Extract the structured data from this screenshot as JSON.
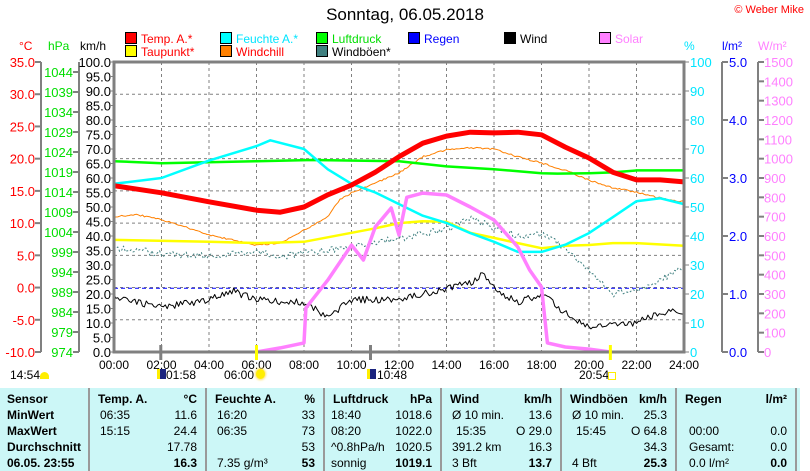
{
  "header": {
    "title": "Sonntag, 06.05.2018",
    "copyright": "© Weber Mike"
  },
  "legend": [
    {
      "label": "Temp. A.*",
      "color": "#ff0000",
      "text_color": "#ff0000"
    },
    {
      "label": "Feuchte A.*",
      "color": "#00ffff",
      "text_color": "#00e5ff"
    },
    {
      "label": "Luftdruck",
      "color": "#00ff00",
      "text_color": "#00dd00"
    },
    {
      "label": "Regen",
      "color": "#0000ff",
      "text_color": "#0000ff"
    },
    {
      "label": "Wind",
      "color": "#000000",
      "text_color": "#000000"
    },
    {
      "label": "Solar",
      "color": "#ff80ff",
      "text_color": "#ff80ff"
    },
    {
      "label": "Taupunkt*",
      "color": "#ffff00",
      "text_color": "#ff0000"
    },
    {
      "label": "Windchill",
      "color": "#ff8000",
      "text_color": "#ff0000"
    },
    {
      "label": "Windböen*",
      "color": "#408080",
      "text_color": "#000000"
    }
  ],
  "chart_data": {
    "type": "line",
    "title": "Sonntag, 06.05.2018",
    "xlabel": "",
    "x_range": [
      0,
      24
    ],
    "x_ticks": [
      "00:00",
      "02:00",
      "04:00",
      "06:00",
      "08:00",
      "10:00",
      "12:00",
      "14:00",
      "16:00",
      "18:00",
      "20:00",
      "22:00",
      "24:00"
    ],
    "grid": true,
    "axes": {
      "temp": {
        "unit": "°C",
        "range": [
          -10,
          35
        ],
        "color": "#ff0000",
        "ticks": [
          "35.0",
          "30.0",
          "25.0",
          "20.0",
          "15.0",
          "10.0",
          "5.0",
          "0.0",
          "-5.0",
          "-10.0"
        ]
      },
      "hpa": {
        "unit": "hPa",
        "range": [
          974,
          1046.5
        ],
        "color": "#00dd00",
        "ticks": [
          "1044",
          "1039",
          "1034",
          "1029",
          "1024",
          "1019",
          "1014",
          "1009",
          "1004",
          "999",
          "994",
          "989",
          "984",
          "979",
          "974"
        ]
      },
      "kmh": {
        "unit": "km/h",
        "range": [
          0,
          100
        ],
        "color": "#000000",
        "ticks": [
          "100.0",
          "95.0",
          "90.0",
          "85.0",
          "80.0",
          "75.0",
          "70.0",
          "65.0",
          "60.0",
          "55.0",
          "50.0",
          "45.0",
          "40.0",
          "35.0",
          "30.0",
          "25.0",
          "20.0",
          "15.0",
          "10.0",
          "5.0",
          "0.0"
        ]
      },
      "hum": {
        "unit": "%",
        "range": [
          0,
          100
        ],
        "color": "#00e5ff",
        "ticks": [
          "100",
          "90",
          "80",
          "70",
          "60",
          "50",
          "40",
          "30",
          "20",
          "10",
          "0"
        ]
      },
      "rain": {
        "unit": "l/m²",
        "range": [
          0,
          5
        ],
        "color": "#0000ff",
        "ticks": [
          "5.0",
          "4.0",
          "3.0",
          "2.0",
          "1.0",
          "0.0"
        ]
      },
      "solar": {
        "unit": "W/m²",
        "range": [
          0,
          1500
        ],
        "color": "#ff80ff",
        "ticks": [
          "1500",
          "1400",
          "1300",
          "1200",
          "1100",
          "1000",
          "900",
          "800",
          "700",
          "600",
          "500",
          "400",
          "300",
          "200",
          "100",
          "0"
        ]
      }
    },
    "reference_line_kmh": 22,
    "series": [
      {
        "name": "Windböen",
        "axis": "kmh",
        "color": "#408080",
        "noisy": true,
        "x": [
          0,
          2,
          4,
          6,
          7,
          8,
          10,
          11,
          12,
          13,
          14,
          15,
          16,
          17,
          18,
          19,
          20,
          21,
          22,
          23,
          24
        ],
        "y": [
          36,
          34,
          33,
          35,
          33,
          34,
          36,
          38,
          39,
          41,
          42,
          46.5,
          43,
          40,
          41,
          36,
          28,
          20,
          21,
          25,
          29
        ]
      },
      {
        "name": "Wind",
        "axis": "kmh",
        "color": "#000000",
        "noisy": true,
        "x": [
          0,
          2,
          4,
          5,
          6,
          8,
          9,
          10,
          12,
          13,
          14,
          15,
          15.6,
          16,
          17,
          18,
          19,
          20,
          21,
          22,
          23,
          24
        ],
        "y": [
          19,
          15.5,
          18,
          21,
          18,
          17,
          12,
          18,
          18,
          20,
          22,
          24,
          27,
          22,
          17,
          20,
          13.5,
          8.6,
          9.3,
          10,
          13.5,
          14
        ]
      },
      {
        "name": "Regen",
        "axis": "rain",
        "color": "#0000ff",
        "x": [
          0,
          24
        ],
        "y": [
          0,
          0
        ]
      },
      {
        "name": "Windchill",
        "axis": "temp",
        "color": "#ff8000",
        "noisy": true,
        "x": [
          0,
          1,
          2,
          3,
          4,
          5,
          6,
          7,
          8,
          9,
          9.5,
          10,
          11,
          12,
          13,
          14,
          15,
          16,
          17,
          18,
          19,
          20,
          21,
          22,
          23,
          24
        ],
        "y": [
          11.0,
          11.3,
          10.5,
          9.4,
          8.2,
          7.4,
          6.6,
          6.9,
          8.9,
          11.0,
          13.6,
          14.7,
          16.2,
          17.8,
          20.3,
          21.4,
          21.7,
          21.5,
          20.3,
          19.3,
          18.2,
          16.7,
          15.5,
          14.8,
          13.9,
          13.3
        ]
      },
      {
        "name": "Taupunkt",
        "axis": "temp",
        "color": "#ffff00",
        "x": [
          0,
          4,
          6,
          8,
          10,
          11,
          12,
          13,
          14,
          15,
          16,
          17,
          18,
          19,
          20,
          21,
          22,
          24
        ],
        "y": [
          7.4,
          7.1,
          6.9,
          7.1,
          8.5,
          9.2,
          10.0,
          10.3,
          10.2,
          8.5,
          7.7,
          6.9,
          6.1,
          6.5,
          6.6,
          6.9,
          6.9,
          6.5
        ]
      },
      {
        "name": "Luftdruck",
        "axis": "hpa",
        "color": "#00ff00",
        "x": [
          0,
          2,
          6,
          8.33,
          12,
          14,
          16,
          18,
          18.67,
          20,
          21,
          22,
          24
        ],
        "y": [
          1021.7,
          1021.2,
          1021.7,
          1022.0,
          1021.7,
          1020.4,
          1019.7,
          1018.7,
          1018.6,
          1018.7,
          1018.9,
          1019.4,
          1019.4
        ]
      },
      {
        "name": "Feuchte A.",
        "axis": "hum",
        "color": "#00ffff",
        "x": [
          0,
          2,
          4,
          6,
          6.58,
          8,
          9,
          10,
          11,
          12,
          13,
          14,
          15,
          16,
          17,
          18,
          19,
          20,
          21,
          22,
          23,
          24
        ],
        "y": [
          58,
          60,
          66,
          71,
          73,
          70,
          63,
          58,
          55,
          51,
          47,
          44.5,
          41,
          38,
          34.5,
          34.5,
          37,
          41,
          46.5,
          52,
          53,
          51
        ]
      },
      {
        "name": "Solar",
        "axis": "solar",
        "color": "#ff80ff",
        "x": [
          6,
          7,
          8,
          8.08,
          9,
          10,
          10.5,
          11,
          11.67,
          12,
          12.33,
          13,
          14,
          15,
          16,
          17,
          17.5,
          18,
          18.25,
          19,
          20,
          20.9
        ],
        "y": [
          0,
          21,
          47,
          228,
          372,
          553,
          476,
          647,
          745,
          605,
          800,
          822,
          812,
          750,
          683,
          543,
          424,
          336,
          47,
          26,
          15,
          0
        ]
      },
      {
        "name": "Temp. A.",
        "axis": "temp",
        "color": "#ff0000",
        "x": [
          0,
          2,
          4,
          6,
          7,
          8,
          9,
          10,
          11,
          12,
          13,
          14,
          15,
          16,
          17,
          18,
          19,
          20,
          21,
          22,
          23,
          24
        ],
        "y": [
          15.8,
          14.7,
          13.3,
          12.0,
          11.7,
          12.5,
          14.4,
          15.9,
          17.9,
          20.3,
          22.4,
          23.5,
          24.1,
          24.0,
          24.1,
          23.7,
          21.8,
          20.1,
          17.9,
          16.7,
          16.7,
          16.4
        ]
      }
    ]
  },
  "astro": [
    {
      "label": "14:54",
      "icon": "moon-phase-icon"
    },
    {
      "label": "01:58",
      "icon": "moonrise-icon",
      "hour": 1.97
    },
    {
      "label": "06:00",
      "icon": "sunrise-icon",
      "hour": 6.0
    },
    {
      "label": "10:48",
      "icon": "moonset-icon",
      "hour": 10.8
    },
    {
      "label": "20:54",
      "icon": "sunset-icon",
      "hour": 20.9
    }
  ],
  "table": {
    "sensor_header": "Sensor",
    "row_labels": [
      "MinWert",
      "MaxWert",
      "Durchschnitt",
      "06.05. 23:55"
    ],
    "columns": [
      {
        "name": "Temp. A.",
        "unit": "°C",
        "rows": [
          [
            "06:35",
            "11.6"
          ],
          [
            "15:15",
            "24.4"
          ],
          [
            "",
            "17.78"
          ],
          [
            "",
            "16.3"
          ]
        ]
      },
      {
        "name": "Feuchte A.",
        "unit": "%",
        "rows": [
          [
            "16:20",
            "33"
          ],
          [
            "06:35",
            "73"
          ],
          [
            "",
            "53"
          ],
          [
            "7.35 g/m³",
            "53"
          ]
        ]
      },
      {
        "name": "Luftdruck",
        "unit": "hPa",
        "rows": [
          [
            "18:40",
            "1018.6"
          ],
          [
            "08:20",
            "1022.0"
          ],
          [
            "^0.8hPa/h",
            "1020.5"
          ],
          [
            "sonnig",
            "1019.1"
          ]
        ]
      },
      {
        "name": "Wind",
        "unit": "km/h",
        "rows": [
          [
            "Ø 10 min.",
            "13.6"
          ],
          [
            "15:35",
            "O 29.0"
          ],
          [
            "391.2 km",
            "16.3"
          ],
          [
            "3 Bft",
            "13.7"
          ]
        ]
      },
      {
        "name": "Windböen",
        "unit": "km/h",
        "rows": [
          [
            "Ø 10 min.",
            "25.3"
          ],
          [
            "15:45",
            "O 64.8"
          ],
          [
            "",
            "34.3"
          ],
          [
            "4 Bft",
            "25.3"
          ]
        ]
      },
      {
        "name": "Regen",
        "unit": "l/m²",
        "rows": [
          [
            "",
            ""
          ],
          [
            "00:00",
            "0.0"
          ],
          [
            "Gesamt:",
            "0.0"
          ],
          [
            "0.0 l/m²",
            "0.0"
          ]
        ]
      }
    ]
  }
}
